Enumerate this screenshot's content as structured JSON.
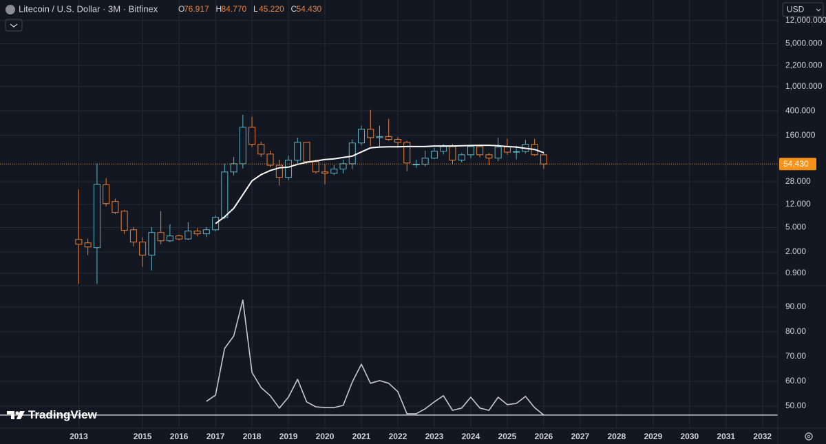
{
  "currency": "USD",
  "watermark": "TradingView",
  "chart_data": {
    "type": "candlestick",
    "title": "Litecoin / U.S. Dollar · 3M · Bitfinex",
    "ohlc_keys": [
      "O",
      "H",
      "L",
      "C"
    ],
    "ohlc_values": [
      "76.917",
      "84.770",
      "45.220",
      "54.430"
    ],
    "x": [
      2013.25,
      2013.5,
      2013.75,
      2014,
      2014.25,
      2014.5,
      2014.75,
      2015,
      2015.25,
      2015.5,
      2015.75,
      2016,
      2016.25,
      2016.5,
      2016.75,
      2017,
      2017.25,
      2017.5,
      2017.75,
      2018,
      2018.25,
      2018.5,
      2018.75,
      2019,
      2019.25,
      2019.5,
      2019.75,
      2020,
      2020.25,
      2020.5,
      2020.75,
      2021,
      2021.25,
      2021.5,
      2021.75,
      2022,
      2022.25,
      2022.5,
      2022.75,
      2023,
      2023.25,
      2023.5,
      2023.75,
      2024,
      2024.25,
      2024.5,
      2024.75,
      2025,
      2025.25,
      2025.5,
      2025.75,
      2026
    ],
    "open": [
      3.2,
      2.81,
      2.35,
      25.1,
      13.3,
      9.25,
      4.6,
      2.89,
      1.77,
      4.15,
      3.04,
      3.65,
      3.25,
      4.37,
      3.95,
      4.6,
      7.3,
      40.4,
      55,
      217,
      114,
      79,
      52,
      32.9,
      62.8,
      123,
      59.6,
      40.5,
      38.4,
      45,
      55,
      120,
      201,
      147,
      152,
      137,
      123,
      53,
      54,
      67.8,
      88,
      105,
      63,
      77,
      105,
      77,
      68,
      103,
      85,
      87,
      114,
      76.917
    ],
    "high": [
      21,
      3.29,
      55,
      32,
      14.8,
      9.75,
      5.1,
      3.46,
      5.1,
      9.25,
      5.66,
      3.8,
      6.1,
      4.9,
      5.1,
      7.9,
      55,
      71,
      346,
      321,
      126,
      90,
      64,
      75,
      147,
      124,
      64,
      54,
      52,
      64,
      137,
      229,
      415,
      230,
      296,
      150,
      130,
      64,
      90,
      100,
      115,
      115,
      82,
      112,
      110,
      82,
      147,
      141,
      108,
      135,
      140,
      84.77
    ],
    "low": [
      0.6,
      1.77,
      0.6,
      11.1,
      8.3,
      3.94,
      2.47,
      1.14,
      1.0,
      2.67,
      2.89,
      3.1,
      3.1,
      3.6,
      3.5,
      4.3,
      6.9,
      35.5,
      46,
      103,
      71,
      48,
      24.1,
      29.6,
      55,
      55,
      38,
      25.4,
      36,
      38,
      45,
      110,
      108,
      104,
      130,
      101,
      41.5,
      47,
      50,
      66,
      78,
      55,
      58,
      68,
      70,
      52,
      60,
      77,
      65,
      81,
      74,
      45.22
    ],
    "close": [
      2.67,
      2.41,
      25.4,
      12.3,
      8.8,
      4.5,
      2.89,
      1.77,
      4.15,
      3.04,
      3.65,
      3.25,
      4.37,
      3.95,
      4.6,
      7.3,
      40.4,
      55,
      217,
      114,
      79,
      52,
      32.9,
      62.8,
      123,
      59.6,
      40.5,
      38.4,
      45,
      55,
      120,
      201,
      147,
      152,
      137,
      123,
      56.6,
      54,
      67.8,
      88,
      105,
      63,
      77,
      105,
      77,
      68,
      103,
      85,
      87,
      114,
      77,
      54.43
    ],
    "up_color": "#5ab4c6",
    "down_color": "#e8823a",
    "series": [
      {
        "color": "#ffffff",
        "values": [
          null,
          null,
          null,
          null,
          null,
          null,
          null,
          null,
          null,
          null,
          null,
          null,
          null,
          null,
          null,
          5.8,
          7.5,
          10.3,
          17.2,
          28.9,
          36.5,
          42.6,
          47.2,
          48.4,
          53.7,
          58,
          61.2,
          64.4,
          66.1,
          69.6,
          73.3,
          85.7,
          100,
          103,
          104,
          104,
          105,
          105,
          105,
          107,
          107,
          107,
          108,
          109,
          110,
          110,
          108,
          105,
          103,
          98,
          94,
          83.4
        ]
      }
    ],
    "log_y": true,
    "grid": true,
    "xlim": [
      2011.09,
      2032.42
    ],
    "xticks": [
      {
        "value": 2013.25,
        "label": "2013"
      },
      2015,
      2016,
      2017,
      2018,
      2019,
      2020,
      2021,
      2022,
      2023,
      2024,
      2025,
      2026,
      2027,
      2028,
      2029,
      2030,
      2031,
      2032
    ],
    "ylim": [
      0.562,
      25900
    ],
    "yticks": [
      {
        "value": 12000,
        "label": "12,000.000"
      },
      {
        "value": 5000,
        "label": "5,000.000"
      },
      {
        "value": 2200,
        "label": "2,200.000"
      },
      {
        "value": 1000,
        "label": "1,000.000"
      },
      {
        "value": 400,
        "label": "400.000"
      },
      {
        "value": 160,
        "label": "160.000"
      },
      {
        "value": 28,
        "label": "28.000"
      },
      {
        "value": 12,
        "label": "12.000"
      },
      {
        "value": 5,
        "label": "5.000"
      },
      {
        "value": 2,
        "label": "2.000"
      },
      {
        "value": 0.9,
        "label": "0.900"
      }
    ],
    "last_price": {
      "value": 54.43,
      "label": "54.430",
      "color": "#f7931a"
    },
    "indicator": {
      "type": "line",
      "color": "#c8cad0",
      "values": [
        null,
        null,
        null,
        null,
        null,
        null,
        null,
        null,
        null,
        null,
        null,
        null,
        null,
        null,
        51.9,
        54.4,
        73.3,
        78.3,
        92.8,
        63.6,
        57.5,
        54.2,
        49.2,
        53.6,
        60.8,
        51.7,
        49.7,
        49.4,
        49.4,
        50.3,
        59.7,
        66.9,
        59.2,
        60.3,
        59.2,
        55.8,
        46.9,
        46.9,
        48.9,
        51.7,
        54.2,
        48.3,
        49.2,
        53.6,
        49.2,
        48.3,
        53.6,
        50.6,
        51.1,
        53.9,
        49.4,
        46.4
      ],
      "ylim": [
        41.1,
        98.6
      ],
      "yticks": [
        {
          "value": 90,
          "label": "90.00"
        },
        {
          "value": 80,
          "label": "80.00"
        },
        {
          "value": 70,
          "label": "70.00"
        },
        {
          "value": 60,
          "label": "60.00"
        },
        {
          "value": 50,
          "label": "50.00"
        }
      ],
      "level": 46.4
    }
  }
}
